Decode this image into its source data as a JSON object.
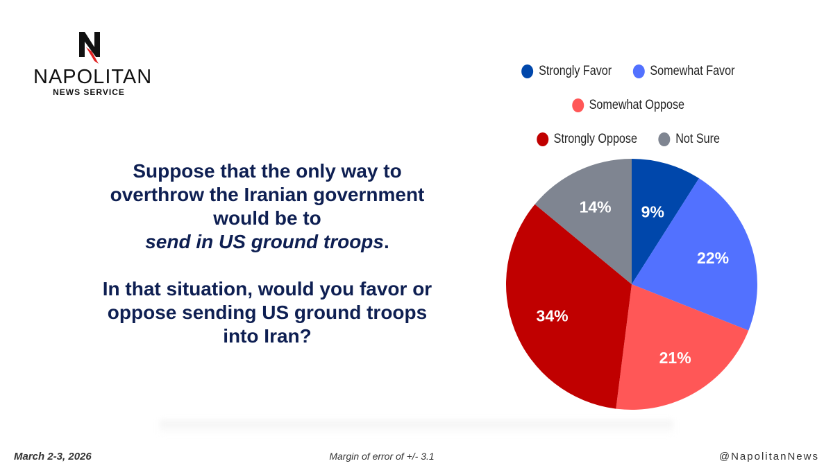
{
  "logo": {
    "name": "NAPOLITAN",
    "sub": "NEWS SERVICE"
  },
  "question": {
    "line1": "Suppose that the only way to overthrow the Iranian government would be to",
    "emphasis": "send in US ground troops",
    "period": ".",
    "line2": "In that situation, would you favor or oppose sending US ground troops into Iran?"
  },
  "chart_data": {
    "type": "pie",
    "categories": [
      "Strongly Favor",
      "Somewhat Favor",
      "Somewhat Oppose",
      "Strongly Oppose",
      "Not Sure"
    ],
    "values": [
      9,
      22,
      21,
      34,
      14
    ],
    "labels": [
      "9%",
      "22%",
      "21%",
      "34%",
      "14%"
    ],
    "colors": [
      "#0047ab",
      "#5271ff",
      "#ff5757",
      "#c00000",
      "#7f8591"
    ],
    "legend_position": "top-right"
  },
  "footer": {
    "date": "March 2-3, 2026",
    "margin": "Margin of error of +/- 3.1",
    "handle": "@NapolitanNews"
  }
}
